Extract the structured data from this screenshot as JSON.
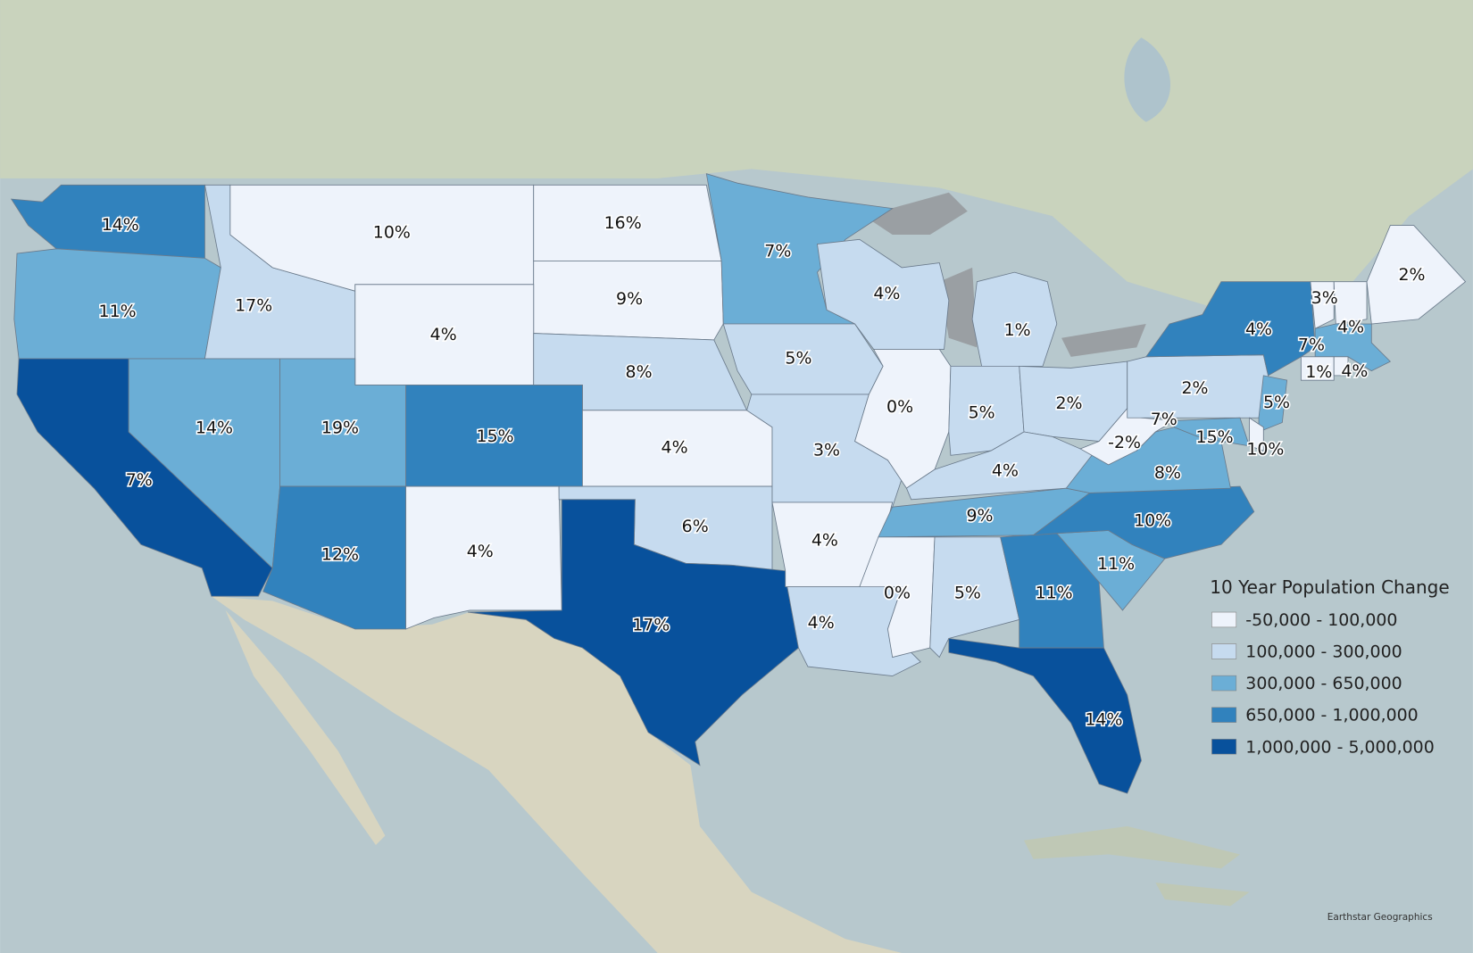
{
  "map": {
    "legend": {
      "title": "10 Year Population Change",
      "items": [
        {
          "label": "-50,000 - 100,000",
          "color": "#eef3fb"
        },
        {
          "label": "100,000 - 300,000",
          "color": "#c6dbef"
        },
        {
          "label": "300,000 - 650,000",
          "color": "#6baed6"
        },
        {
          "label": "650,000 - 1,000,000",
          "color": "#3182bd"
        },
        {
          "label": "1,000,000 - 5,000,000",
          "color": "#08519c"
        }
      ]
    },
    "states": [
      {
        "label": "14%",
        "color": "#3182bd"
      },
      {
        "label": "11%",
        "color": "#6baed6"
      },
      {
        "label": "7%",
        "color": "#08519c"
      },
      {
        "label": "17%",
        "color": "#c6dbef"
      },
      {
        "label": "10%",
        "color": "#eef3fb"
      },
      {
        "label": "16%",
        "color": "#eef3fb"
      },
      {
        "label": "9%",
        "color": "#eef3fb"
      },
      {
        "label": "4%",
        "color": "#eef3fb"
      },
      {
        "label": "8%",
        "color": "#c6dbef"
      },
      {
        "label": "14%",
        "color": "#6baed6"
      },
      {
        "label": "19%",
        "color": "#6baed6"
      },
      {
        "label": "15%",
        "color": "#3182bd"
      },
      {
        "label": "4%",
        "color": "#eef3fb"
      },
      {
        "label": "12%",
        "color": "#3182bd"
      },
      {
        "label": "4%",
        "color": "#eef3fb"
      },
      {
        "label": "6%",
        "color": "#c6dbef"
      },
      {
        "label": "17%",
        "color": "#08519c"
      },
      {
        "label": "7%",
        "color": "#6baed6"
      },
      {
        "label": "5%",
        "color": "#c6dbef"
      },
      {
        "label": "3%",
        "color": "#c6dbef"
      },
      {
        "label": "4%",
        "color": "#eef3fb"
      },
      {
        "label": "4%",
        "color": "#c6dbef"
      },
      {
        "label": "4%",
        "color": "#c6dbef"
      },
      {
        "label": "0%",
        "color": "#eef3fb"
      },
      {
        "label": "1%",
        "color": "#c6dbef"
      },
      {
        "label": "5%",
        "color": "#c6dbef"
      },
      {
        "label": "2%",
        "color": "#c6dbef"
      },
      {
        "label": "4%",
        "color": "#c6dbef"
      },
      {
        "label": "9%",
        "color": "#6baed6"
      },
      {
        "label": "0%",
        "color": "#eef3fb"
      },
      {
        "label": "5%",
        "color": "#c6dbef"
      },
      {
        "label": "11%",
        "color": "#3182bd"
      },
      {
        "label": "14%",
        "color": "#08519c"
      },
      {
        "label": "11%",
        "color": "#6baed6"
      },
      {
        "label": "10%",
        "color": "#3182bd"
      },
      {
        "label": "8%",
        "color": "#6baed6"
      },
      {
        "label": "-2%",
        "color": "#eef3fb"
      },
      {
        "label": "2%",
        "color": "#c6dbef"
      },
      {
        "label": "4%",
        "color": "#3182bd"
      },
      {
        "label": "7%",
        "color": "#6baed6"
      },
      {
        "label": "15%",
        "color": "#eef3fb"
      },
      {
        "label": "5%",
        "color": "#6baed6"
      },
      {
        "label": "10%",
        "color": "#eef3fb"
      },
      {
        "label": "3%",
        "color": "#eef3fb"
      },
      {
        "label": "4%",
        "color": "#eef3fb"
      },
      {
        "label": "2%",
        "color": "#eef3fb"
      },
      {
        "label": "7%",
        "color": "#6baed6"
      },
      {
        "label": "1%",
        "color": "#eef3fb"
      },
      {
        "label": "4%",
        "color": "#eef3fb"
      }
    ],
    "attribution": "Earthstar Geographics"
  }
}
